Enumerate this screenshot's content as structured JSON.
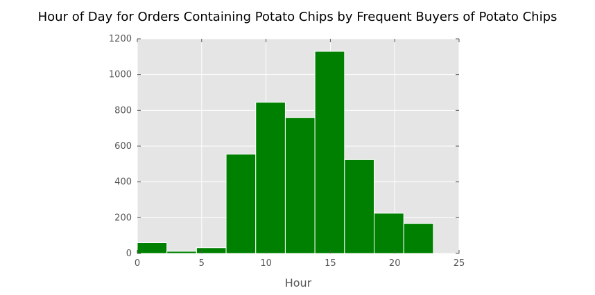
{
  "chart_data": {
    "type": "bar",
    "title": "Hour of Day for Orders Containing Potato Chips by Frequent Buyers of Potato Chips",
    "xlabel": "Hour",
    "ylabel": "",
    "xlim": [
      0,
      25
    ],
    "ylim": [
      0,
      1200
    ],
    "xticks": [
      "0",
      "5",
      "10",
      "15",
      "20",
      "25"
    ],
    "yticks": [
      "0",
      "200",
      "400",
      "600",
      "800",
      "1000",
      "1200"
    ],
    "grid": true,
    "bins": [
      {
        "start": 0.0,
        "end": 2.3,
        "value": 60
      },
      {
        "start": 2.3,
        "end": 4.6,
        "value": 12
      },
      {
        "start": 4.6,
        "end": 6.9,
        "value": 32
      },
      {
        "start": 6.9,
        "end": 9.2,
        "value": 555
      },
      {
        "start": 9.2,
        "end": 11.5,
        "value": 845
      },
      {
        "start": 11.5,
        "end": 13.8,
        "value": 760
      },
      {
        "start": 13.8,
        "end": 16.1,
        "value": 1130
      },
      {
        "start": 16.1,
        "end": 18.4,
        "value": 525
      },
      {
        "start": 18.4,
        "end": 20.7,
        "value": 225
      },
      {
        "start": 20.7,
        "end": 23.0,
        "value": 168
      }
    ],
    "colors": {
      "bar": "#008000",
      "bar_edge": "#ffffff",
      "plot_background": "#e5e5e5",
      "grid": "#ffffff"
    }
  }
}
